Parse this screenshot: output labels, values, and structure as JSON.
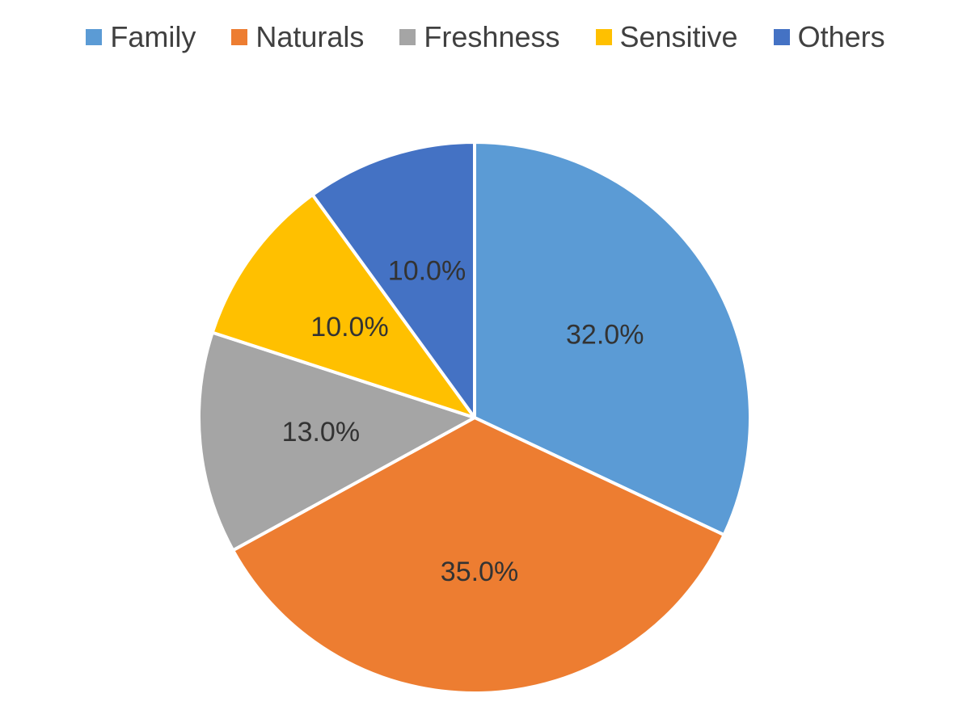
{
  "chart_data": {
    "type": "pie",
    "title": "",
    "categories": [
      "Family",
      "Naturals",
      "Freshness",
      "Sensitive",
      "Others"
    ],
    "values": [
      32.0,
      35.0,
      13.0,
      10.0,
      10.0
    ],
    "data_labels": [
      "32.0%",
      "35.0%",
      "13.0%",
      "10.0%",
      "10.0%"
    ],
    "colors": [
      "#5B9BD5",
      "#ED7D31",
      "#A5A5A5",
      "#FFC000",
      "#4472C4"
    ],
    "legend": {
      "position": "top",
      "entries": [
        "Family",
        "Naturals",
        "Freshness",
        "Sensitive",
        "Others"
      ]
    },
    "start_angle_deg": 0,
    "direction": "clockwise"
  }
}
